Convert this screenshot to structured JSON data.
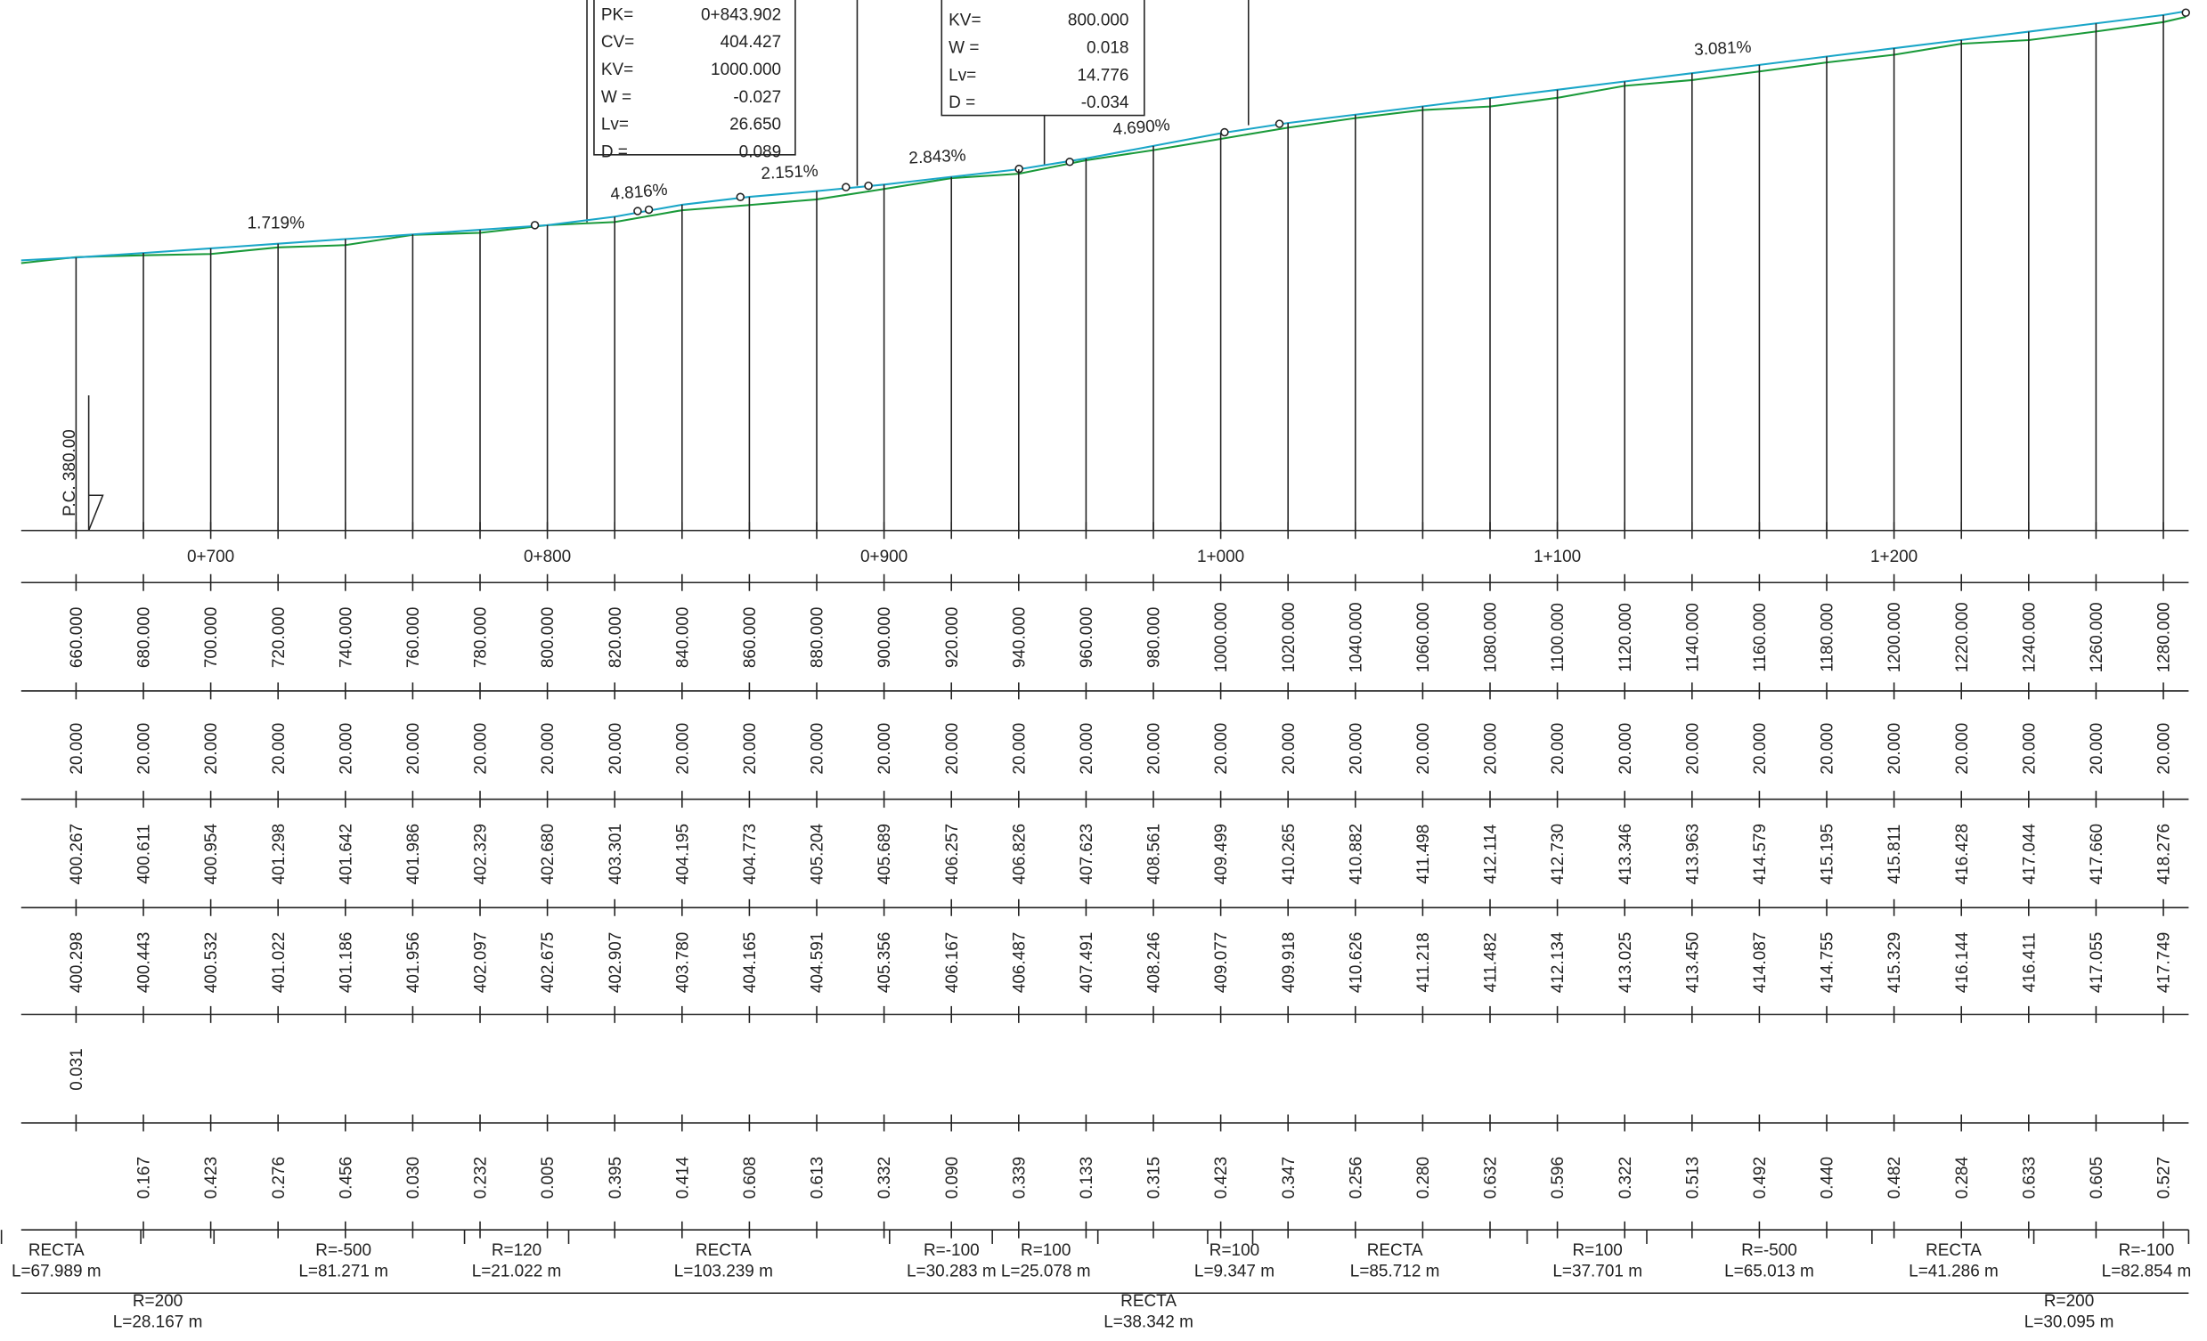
{
  "profile": {
    "slopes": [
      "1.719%",
      "4.816%",
      "2.151%",
      "2.843%",
      "4.690%",
      "3.081%"
    ],
    "datum": "P.C. 380.00",
    "curve_boxes": [
      {
        "rows": [
          [
            "PK=",
            "0+843.902"
          ],
          [
            "CV=",
            "404.427"
          ],
          [
            "KV=",
            "1000.000"
          ],
          [
            "W =",
            "-0.027"
          ],
          [
            "Lv=",
            "26.650"
          ],
          [
            "D =",
            "0.089"
          ]
        ]
      },
      {
        "rows": [
          [
            "KV=",
            "800.000"
          ],
          [
            "W =",
            "0.018"
          ],
          [
            "Lv=",
            "14.776"
          ],
          [
            "D =",
            "-0.034"
          ]
        ]
      }
    ],
    "stations": [
      "0+700",
      "0+800",
      "0+900",
      "1+000",
      "1+100",
      "1+200"
    ],
    "bands": {
      "distance": [
        "660.000",
        "680.000",
        "700.000",
        "720.000",
        "740.000",
        "760.000",
        "780.000",
        "800.000",
        "820.000",
        "840.000",
        "860.000",
        "880.000",
        "900.000",
        "920.000",
        "940.000",
        "960.000",
        "980.000",
        "1000.000",
        "1020.000",
        "1040.000",
        "1060.000",
        "1080.000",
        "1100.000",
        "1120.000",
        "1140.000",
        "1160.000",
        "1180.000",
        "1200.000",
        "1220.000",
        "1240.000",
        "1260.000",
        "1280.000"
      ],
      "partial": [
        "20.000",
        "20.000",
        "20.000",
        "20.000",
        "20.000",
        "20.000",
        "20.000",
        "20.000",
        "20.000",
        "20.000",
        "20.000",
        "20.000",
        "20.000",
        "20.000",
        "20.000",
        "20.000",
        "20.000",
        "20.000",
        "20.000",
        "20.000",
        "20.000",
        "20.000",
        "20.000",
        "20.000",
        "20.000",
        "20.000",
        "20.000",
        "20.000",
        "20.000",
        "20.000",
        "20.000",
        "20.000"
      ],
      "grade": [
        "400.267",
        "400.611",
        "400.954",
        "401.298",
        "401.642",
        "401.986",
        "402.329",
        "402.680",
        "403.301",
        "404.195",
        "404.773",
        "405.204",
        "405.689",
        "406.257",
        "406.826",
        "407.623",
        "408.561",
        "409.499",
        "410.265",
        "410.882",
        "411.498",
        "412.114",
        "412.730",
        "413.346",
        "413.963",
        "414.579",
        "415.195",
        "415.811",
        "416.428",
        "417.044",
        "417.660",
        "418.276"
      ],
      "ground": [
        "400.298",
        "400.443",
        "400.532",
        "401.022",
        "401.186",
        "401.956",
        "402.097",
        "402.675",
        "402.907",
        "403.780",
        "404.165",
        "404.591",
        "405.356",
        "406.167",
        "406.487",
        "407.491",
        "408.246",
        "409.077",
        "409.918",
        "410.626",
        "411.218",
        "411.482",
        "412.134",
        "413.025",
        "413.450",
        "414.087",
        "414.755",
        "415.329",
        "416.144",
        "416.411",
        "417.055",
        "417.749"
      ],
      "fill": [
        "0.031"
      ],
      "cut": [
        "0.167",
        "0.423",
        "0.276",
        "0.456",
        "0.030",
        "0.232",
        "0.005",
        "0.395",
        "0.414",
        "0.608",
        "0.613",
        "0.332",
        "0.090",
        "0.339",
        "0.133",
        "0.315",
        "0.423",
        "0.347",
        "0.256",
        "0.280",
        "0.632",
        "0.596",
        "0.322",
        "0.513",
        "0.492",
        "0.440",
        "0.482",
        "0.284",
        "0.633",
        "0.605",
        "0.527"
      ]
    },
    "alignment": {
      "top": [
        [
          "RECTA",
          "L=67.989 m"
        ],
        [
          "R=-500",
          "L=81.271 m"
        ],
        [
          "R=120",
          "L=21.022 m"
        ],
        [
          "RECTA",
          "L=103.239 m"
        ],
        [
          "R=-100",
          "L=30.283 m"
        ],
        [
          "R=100",
          "L=25.078 m"
        ],
        [
          "R=100",
          "L=9.347 m"
        ],
        [
          "RECTA",
          "L=85.712 m"
        ],
        [
          "R=100",
          "L=37.701 m"
        ],
        [
          "R=-500",
          "L=65.013 m"
        ],
        [
          "RECTA",
          "L=41.286 m"
        ],
        [
          "R=-100",
          "L=82.854 m"
        ]
      ],
      "bottom": [
        [
          "R=200",
          "L=28.167 m"
        ],
        [
          "RECTA",
          "L=38.342 m"
        ],
        [
          "R=200",
          "L=30.095 m"
        ]
      ]
    }
  }
}
